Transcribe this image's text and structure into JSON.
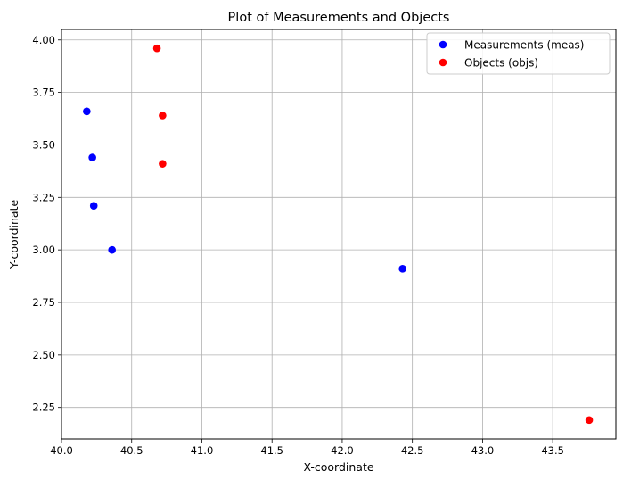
{
  "chart_data": {
    "type": "scatter",
    "title": "Plot of Measurements and Objects",
    "xlabel": "X-coordinate",
    "ylabel": "Y-coordinate",
    "xlim": [
      40.0,
      43.95
    ],
    "ylim": [
      2.1,
      4.05
    ],
    "xticks": [
      "40.0",
      "40.5",
      "41.0",
      "41.5",
      "42.0",
      "42.5",
      "43.0",
      "43.5"
    ],
    "yticks": [
      "2.25",
      "2.50",
      "2.75",
      "3.00",
      "3.25",
      "3.50",
      "3.75",
      "4.00"
    ],
    "grid": true,
    "legend_position": "top-right",
    "series": [
      {
        "name": "Measurements (meas)",
        "color": "#0000ff",
        "points": [
          {
            "x": 40.18,
            "y": 3.66
          },
          {
            "x": 40.22,
            "y": 3.44
          },
          {
            "x": 40.23,
            "y": 3.21
          },
          {
            "x": 40.36,
            "y": 3.0
          },
          {
            "x": 42.43,
            "y": 2.91
          }
        ]
      },
      {
        "name": "Objects (objs)",
        "color": "#ff0000",
        "points": [
          {
            "x": 40.68,
            "y": 3.96
          },
          {
            "x": 40.72,
            "y": 3.64
          },
          {
            "x": 40.72,
            "y": 3.41
          },
          {
            "x": 43.76,
            "y": 2.19
          }
        ]
      }
    ]
  }
}
